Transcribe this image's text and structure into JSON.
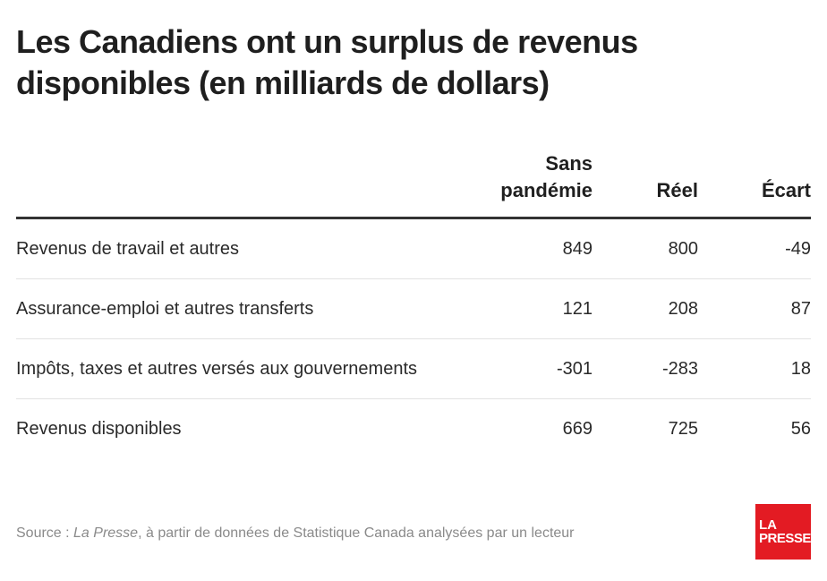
{
  "title": "Les Canadiens ont un surplus de revenus disponibles (en milliards de dollars)",
  "columns": [
    "",
    "Sans pandémie",
    "Réel",
    "Écart"
  ],
  "chart_data": {
    "type": "table",
    "title": "Les Canadiens ont un surplus de revenus disponibles (en milliards de dollars)",
    "columns": [
      "Sans pandémie",
      "Réel",
      "Écart"
    ],
    "rows": [
      {
        "label": "Revenus de travail et autres",
        "values": [
          "849",
          "800",
          "-49"
        ]
      },
      {
        "label": "Assurance-emploi et autres transferts",
        "values": [
          "121",
          "208",
          "87"
        ]
      },
      {
        "label": "Impôts, taxes et autres versés aux gouvernements",
        "values": [
          "-301",
          "-283",
          "18"
        ]
      },
      {
        "label": "Revenus disponibles",
        "values": [
          "669",
          "725",
          "56"
        ]
      }
    ]
  },
  "source": {
    "prefix": "Source : ",
    "publication": "La Presse",
    "suffix": ", à partir de données de Statistique Canada analysées par un lecteur"
  },
  "logo": {
    "line1": "LA",
    "line2": "PRESSE",
    "color": "#e31b23"
  }
}
